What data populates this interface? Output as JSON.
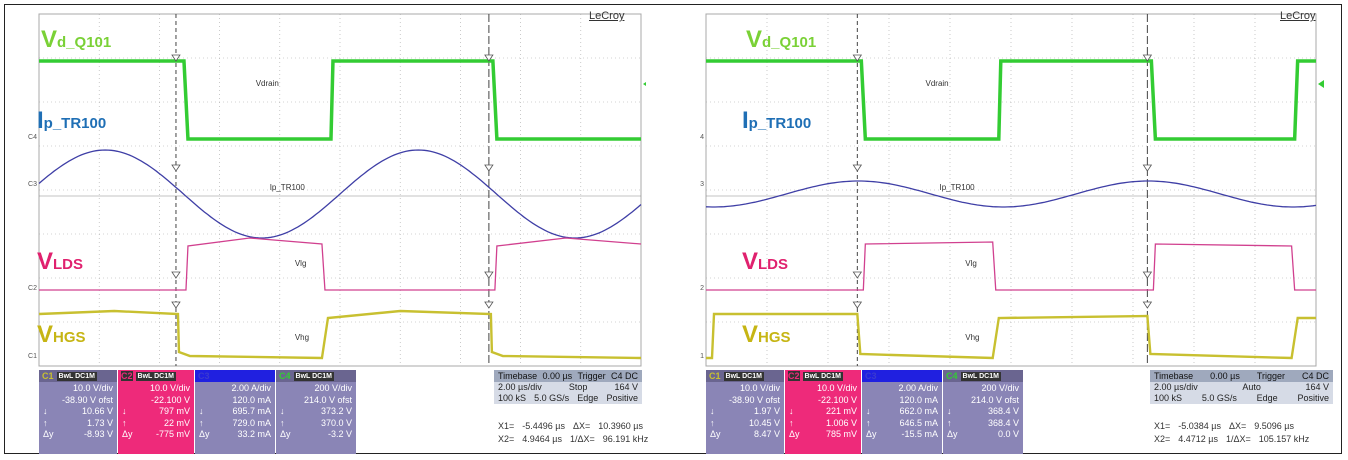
{
  "colors": {
    "ch1": "#c8c030",
    "ch2": "#d1408f",
    "ch3": "#3f3fa6",
    "ch4": "#33cc33",
    "grid": "#a8a8a8",
    "bg": "#ffffff",
    "panel_ch1": "#8a85b6",
    "panel_ch2": "#ee2a7a",
    "panel_ch3": "#8a85b6",
    "panel_ch4": "#8a85b6"
  },
  "scopes": [
    {
      "brand": "LeCroy",
      "labels": {
        "vd": {
          "main": "V",
          "sub": "d_Q101"
        },
        "ip": {
          "main": "I",
          "sub": "p_TR100"
        },
        "vlds": {
          "main": "V",
          "sub": "LDS"
        },
        "vhgs": {
          "main": "V",
          "sub": "HGS"
        }
      },
      "trace_labels": {
        "vdrain": "Vdrain",
        "ip": "Ip_TR100",
        "vlg": "Vlg",
        "vhg": "Vhg"
      },
      "channels": [
        {
          "name": "C1",
          "hdr": "BwL DC1M",
          "rows": [
            [
              "",
              "10.0 V/div"
            ],
            [
              "",
              "-38.90 V ofst"
            ],
            [
              "↓",
              "10.66 V"
            ],
            [
              "↑",
              "1.73 V"
            ],
            [
              "Δy",
              "-8.93 V"
            ]
          ]
        },
        {
          "name": "C2",
          "hdr": "BwL DC1M",
          "rows": [
            [
              "",
              "10.0 V/div"
            ],
            [
              "",
              "-22.100 V"
            ],
            [
              "↓",
              "797 mV"
            ],
            [
              "↑",
              "22 mV"
            ],
            [
              "Δy",
              "-775 mV"
            ]
          ]
        },
        {
          "name": "C3",
          "hdr": "",
          "rows": [
            [
              "",
              "2.00 A/div"
            ],
            [
              "",
              "120.0 mA"
            ],
            [
              "↓",
              "695.7 mA"
            ],
            [
              "↑",
              "729.0 mA"
            ],
            [
              "Δy",
              "33.2 mA"
            ]
          ]
        },
        {
          "name": "C4",
          "hdr": "BwL DC1M",
          "rows": [
            [
              "",
              "200 V/div"
            ],
            [
              "",
              "214.0 V ofst"
            ],
            [
              "↓",
              "373.2 V"
            ],
            [
              "↑",
              "370.0 V"
            ],
            [
              "Δy",
              "-3.2 V"
            ]
          ]
        }
      ],
      "timebase": {
        "title": "Timebase",
        "offset": "0.00 µs",
        "trig_title": "Trigger",
        "trig_ch": "C4 DC",
        "div": "2.00 µs/div",
        "mode": "Stop",
        "level": "164 V",
        "samples": "100 kS",
        "rate": "5.0 GS/s",
        "type": "Edge",
        "slope": "Positive"
      },
      "measure": {
        "x1_label": "X1=",
        "x1": "-5.4496 µs",
        "dx_label": "ΔX=",
        "dx": "10.3960 µs",
        "x2_label": "X2=",
        "x2": "4.9464 µs",
        "f_label": "1/ΔX=",
        "f": "96.191 kHz"
      }
    },
    {
      "brand": "LeCroy",
      "labels": {
        "vd": {
          "main": "V",
          "sub": "d_Q101"
        },
        "ip": {
          "main": "I",
          "sub": "p_TR100"
        },
        "vlds": {
          "main": "V",
          "sub": "LDS"
        },
        "vhgs": {
          "main": "V",
          "sub": "HGS"
        }
      },
      "trace_labels": {
        "vdrain": "Vdrain",
        "ip": "Ip_TR100",
        "vlg": "Vlg",
        "vhg": "Vhg"
      },
      "channels": [
        {
          "name": "C1",
          "hdr": "BwL DC1M",
          "rows": [
            [
              "",
              "10.0 V/div"
            ],
            [
              "",
              "-38.90 V ofst"
            ],
            [
              "↓",
              "1.97 V"
            ],
            [
              "↑",
              "10.45 V"
            ],
            [
              "Δy",
              "8.47 V"
            ]
          ]
        },
        {
          "name": "C2",
          "hdr": "BwL DC1M",
          "rows": [
            [
              "",
              "10.0 V/div"
            ],
            [
              "",
              "-22.100 V"
            ],
            [
              "↓",
              "221 mV"
            ],
            [
              "↑",
              "1.006 V"
            ],
            [
              "Δy",
              "785 mV"
            ]
          ]
        },
        {
          "name": "C3",
          "hdr": "",
          "rows": [
            [
              "",
              "2.00 A/div"
            ],
            [
              "",
              "120.0 mA"
            ],
            [
              "↓",
              "662.0 mA"
            ],
            [
              "↑",
              "646.5 mA"
            ],
            [
              "Δy",
              "-15.5 mA"
            ]
          ]
        },
        {
          "name": "C4",
          "hdr": "BwL DC1M",
          "rows": [
            [
              "",
              "200 V/div"
            ],
            [
              "",
              "214.0 V ofst"
            ],
            [
              "↓",
              "368.4 V"
            ],
            [
              "↑",
              "368.4 V"
            ],
            [
              "Δy",
              "0.0 V"
            ]
          ]
        }
      ],
      "timebase": {
        "title": "Timebase",
        "offset": "0.00 µs",
        "trig_title": "Trigger",
        "trig_ch": "C4 DC",
        "div": "2.00 µs/div",
        "mode": "Auto",
        "level": "164 V",
        "samples": "100 kS",
        "rate": "5.0 GS/s",
        "type": "Edge",
        "slope": "Positive"
      },
      "measure": {
        "x1_label": "X1=",
        "x1": "-5.0384 µs",
        "dx_label": "ΔX=",
        "dx": "9.5096 µs",
        "x2_label": "X2=",
        "x2": "4.4712 µs",
        "f_label": "1/ΔX=",
        "f": "105.157 kHz"
      }
    }
  ],
  "chart_data": [
    {
      "type": "line",
      "x_unit": "µs",
      "x_range": [
        -10,
        10
      ],
      "x_div": "2.00 µs/div",
      "grid": true,
      "cursors_x": [
        -5.4496,
        4.9464
      ],
      "series": [
        {
          "name": "Vdrain",
          "channel": "C4",
          "period_us": 10.4,
          "shape": "square",
          "high_level": "high",
          "low_level": "low",
          "fall_us": -5.4,
          "rise_us": -0.3
        },
        {
          "name": "Ip_TR100",
          "channel": "C3",
          "period_us": 10.4,
          "shape": "sine",
          "peak_us": -7.8,
          "amplitude_div": 1.1
        },
        {
          "name": "Vlg",
          "channel": "C2",
          "shape": "square",
          "high_during": "Vdrain low"
        },
        {
          "name": "Vhg",
          "channel": "C1",
          "shape": "square",
          "high_during": "Vdrain high"
        }
      ]
    },
    {
      "type": "line",
      "x_unit": "µs",
      "x_range": [
        -10,
        10
      ],
      "x_div": "2.00 µs/div",
      "grid": true,
      "cursors_x": [
        -5.0384,
        4.4712
      ],
      "series": [
        {
          "name": "Vdrain",
          "channel": "C4",
          "period_us": 9.5,
          "shape": "square"
        },
        {
          "name": "Ip_TR100",
          "channel": "C3",
          "period_us": 9.5,
          "shape": "sine",
          "amplitude_div": 0.4
        },
        {
          "name": "Vlg",
          "channel": "C2",
          "shape": "square"
        },
        {
          "name": "Vhg",
          "channel": "C1",
          "shape": "square"
        }
      ]
    }
  ]
}
